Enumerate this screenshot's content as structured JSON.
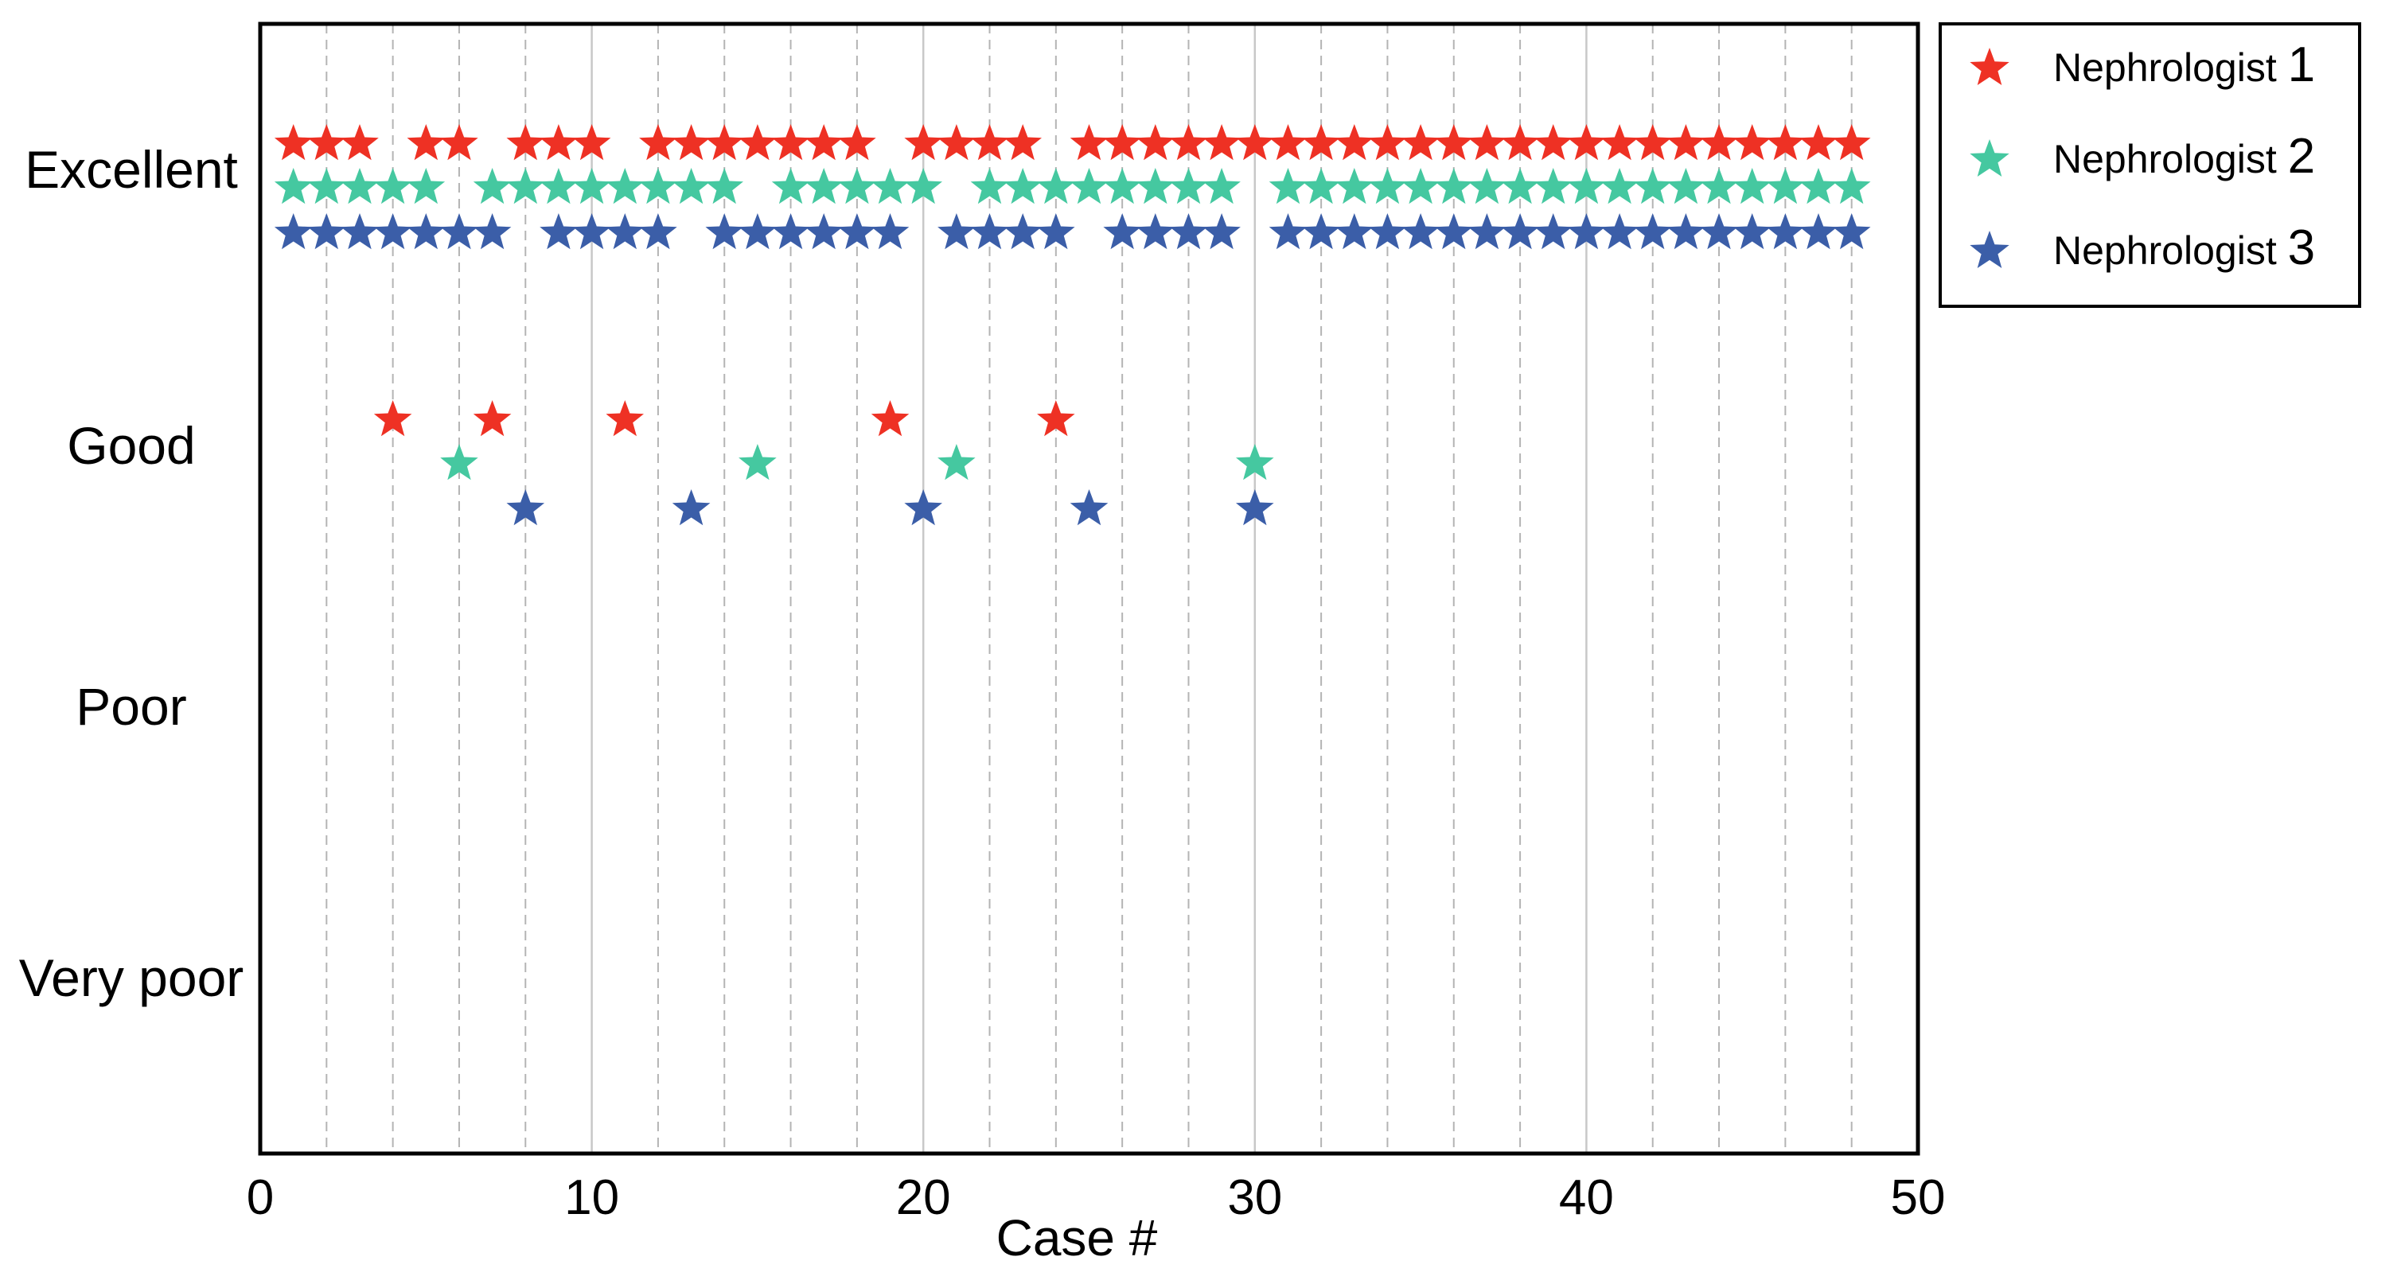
{
  "chart_data": {
    "type": "scatter",
    "title": "",
    "xlabel": "Case #",
    "ylabel": "",
    "xlim": [
      0,
      50
    ],
    "xticks": [
      0,
      10,
      20,
      30,
      40,
      50
    ],
    "minor_gridlines_x": [
      2,
      4,
      6,
      8,
      12,
      14,
      16,
      18,
      22,
      24,
      26,
      28,
      32,
      34,
      36,
      38,
      42,
      44,
      46,
      48
    ],
    "major_gridlines_x": [
      10,
      20,
      30,
      40
    ],
    "y_categories": [
      "Very poor",
      "Poor",
      "Good",
      "Excellent"
    ],
    "marker": "star",
    "legend_position": "outside-top-right",
    "cases": [
      1,
      2,
      3,
      4,
      5,
      6,
      7,
      8,
      9,
      10,
      11,
      12,
      13,
      14,
      15,
      16,
      17,
      18,
      19,
      20,
      21,
      22,
      23,
      24,
      25,
      26,
      27,
      28,
      29,
      30,
      31,
      32,
      33,
      34,
      35,
      36,
      37,
      38,
      39,
      40,
      41,
      42,
      43,
      44,
      45,
      46,
      47,
      48
    ],
    "series": [
      {
        "name": "Nephrologist",
        "number": "1",
        "color": "#ee3124",
        "good_cases": [
          4,
          7,
          11,
          19,
          24
        ],
        "ratings": [
          "Excellent",
          "Excellent",
          "Excellent",
          "Good",
          "Excellent",
          "Excellent",
          "Good",
          "Excellent",
          "Excellent",
          "Excellent",
          "Good",
          "Excellent",
          "Excellent",
          "Excellent",
          "Excellent",
          "Excellent",
          "Excellent",
          "Excellent",
          "Good",
          "Excellent",
          "Excellent",
          "Excellent",
          "Excellent",
          "Good",
          "Excellent",
          "Excellent",
          "Excellent",
          "Excellent",
          "Excellent",
          "Excellent",
          "Excellent",
          "Excellent",
          "Excellent",
          "Excellent",
          "Excellent",
          "Excellent",
          "Excellent",
          "Excellent",
          "Excellent",
          "Excellent",
          "Excellent",
          "Excellent",
          "Excellent",
          "Excellent",
          "Excellent",
          "Excellent",
          "Excellent",
          "Excellent"
        ]
      },
      {
        "name": "Nephrologist",
        "number": "2",
        "color": "#45c8a0",
        "good_cases": [
          6,
          15,
          21,
          30
        ],
        "ratings": [
          "Excellent",
          "Excellent",
          "Excellent",
          "Excellent",
          "Excellent",
          "Good",
          "Excellent",
          "Excellent",
          "Excellent",
          "Excellent",
          "Excellent",
          "Excellent",
          "Excellent",
          "Excellent",
          "Good",
          "Excellent",
          "Excellent",
          "Excellent",
          "Excellent",
          "Excellent",
          "Good",
          "Excellent",
          "Excellent",
          "Excellent",
          "Excellent",
          "Excellent",
          "Excellent",
          "Excellent",
          "Excellent",
          "Good",
          "Excellent",
          "Excellent",
          "Excellent",
          "Excellent",
          "Excellent",
          "Excellent",
          "Excellent",
          "Excellent",
          "Excellent",
          "Excellent",
          "Excellent",
          "Excellent",
          "Excellent",
          "Excellent",
          "Excellent",
          "Excellent",
          "Excellent",
          "Excellent"
        ]
      },
      {
        "name": "Nephrologist",
        "number": "3",
        "color": "#3b5ea8",
        "good_cases": [
          8,
          13,
          20,
          25,
          30
        ],
        "ratings": [
          "Excellent",
          "Excellent",
          "Excellent",
          "Excellent",
          "Excellent",
          "Excellent",
          "Excellent",
          "Good",
          "Excellent",
          "Excellent",
          "Excellent",
          "Excellent",
          "Good",
          "Excellent",
          "Excellent",
          "Excellent",
          "Excellent",
          "Excellent",
          "Excellent",
          "Good",
          "Excellent",
          "Excellent",
          "Excellent",
          "Excellent",
          "Good",
          "Excellent",
          "Excellent",
          "Excellent",
          "Excellent",
          "Good",
          "Excellent",
          "Excellent",
          "Excellent",
          "Excellent",
          "Excellent",
          "Excellent",
          "Excellent",
          "Excellent",
          "Excellent",
          "Excellent",
          "Excellent",
          "Excellent",
          "Excellent",
          "Excellent",
          "Excellent",
          "Excellent",
          "Excellent",
          "Excellent"
        ]
      }
    ]
  }
}
